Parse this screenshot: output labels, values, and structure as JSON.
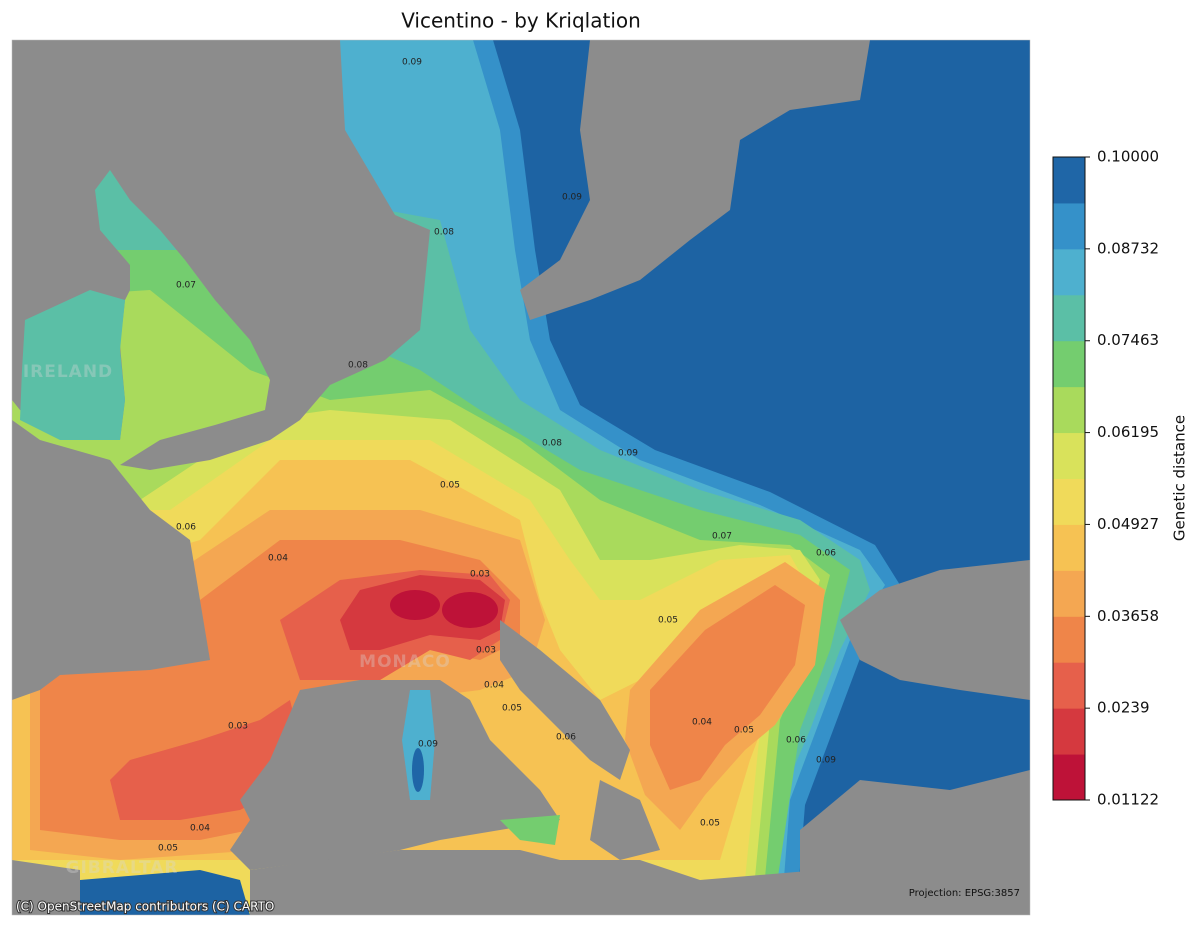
{
  "title": "Vicentino - by Kriqlation",
  "map": {
    "attribution": "(C) OpenStreetMap contributors (C) CARTO",
    "projection": "Projection: EPSG:3857",
    "place_labels": [
      "IRELAND",
      "GIBRALTAR",
      "MONACO"
    ],
    "contour_labels": [
      0.09,
      0.09,
      0.08,
      0.07,
      0.08,
      0.08,
      0.09,
      0.05,
      0.06,
      0.04,
      0.03,
      0.07,
      0.06,
      0.05,
      0.03,
      0.04,
      0.05,
      0.03,
      0.04,
      0.06,
      0.05,
      0.06,
      0.09,
      0.09,
      0.04,
      0.05,
      0.05
    ]
  },
  "colorbar": {
    "label": "Genetic distance",
    "lim": [
      0.01122,
      0.1
    ],
    "ticks": [
      0.01122,
      0.0239,
      0.03658,
      0.04927,
      0.06195,
      0.07463,
      0.08732,
      {
        "value": 0.1,
        "label": "0.10000"
      }
    ],
    "colors": [
      "#be1238",
      "#d5393f",
      "#e6604b",
      "#ef8549",
      "#f4a752",
      "#f6c253",
      "#f0da5a",
      "#d9e25b",
      "#a9da5c",
      "#74cd6f",
      "#5bbfa6",
      "#4eb0cf",
      "#3591c9",
      "#1f66a7"
    ]
  }
}
